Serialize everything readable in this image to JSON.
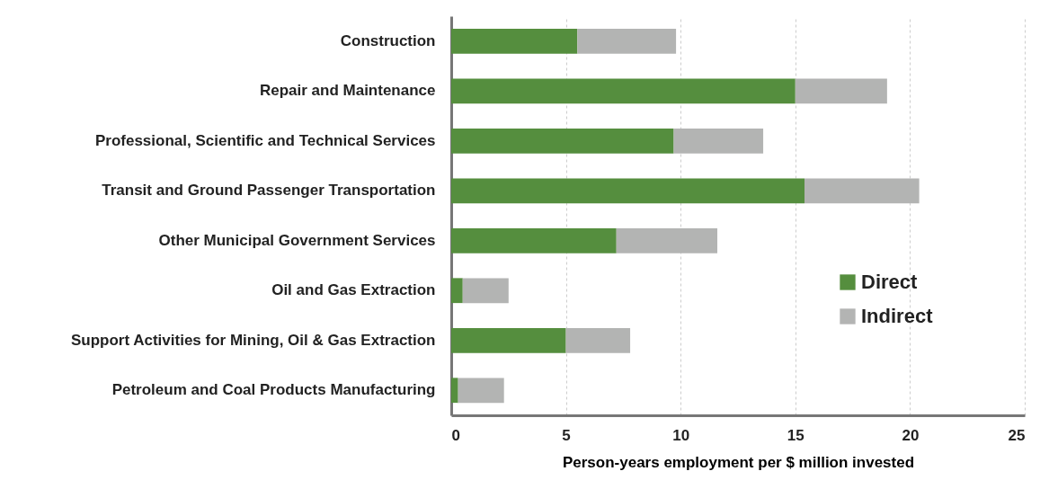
{
  "chart_data": {
    "type": "bar",
    "orientation": "horizontal",
    "stacked": true,
    "xlabel": "Person-years employment per $ million invested",
    "categories": [
      "Construction",
      "Repair and Maintenance",
      "Professional, Scientific and Technical Services",
      "Transit and Ground Passenger Transportation",
      "Other Municipal Government Services",
      "Oil and Gas Extraction",
      "Support Activities for Mining, Oil & Gas Extraction",
      "Petroleum and Coal Products Manufacturing"
    ],
    "series": [
      {
        "name": "Direct",
        "color": "#558e3e",
        "values": [
          5.5,
          15.0,
          9.7,
          15.4,
          7.2,
          0.5,
          5.0,
          0.3
        ]
      },
      {
        "name": "Indirect",
        "color": "#b3b4b3",
        "values": [
          4.3,
          4.0,
          3.9,
          5.0,
          4.4,
          2.0,
          2.8,
          2.0
        ]
      }
    ],
    "xlim": [
      0,
      25
    ],
    "xticks": [
      0,
      5,
      10,
      15,
      20,
      25
    ],
    "grid": "x",
    "legend": "right"
  }
}
